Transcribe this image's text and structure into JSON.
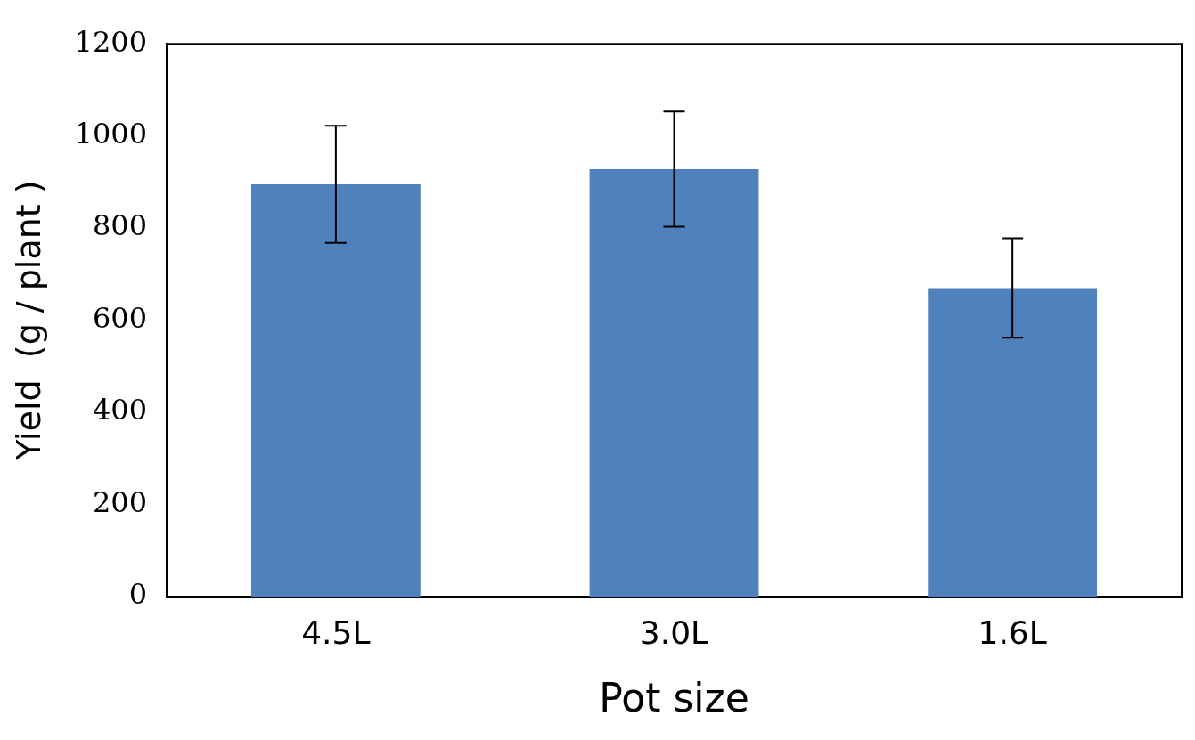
{
  "chart_data": {
    "type": "bar",
    "xlabel": "Pot size",
    "ylabel": "Yield  (g / plant )",
    "categories": [
      "4.5L",
      "3.0L",
      "1.6L"
    ],
    "values": [
      895,
      928,
      670
    ],
    "errors": [
      127,
      125,
      108
    ],
    "color": "#4f81bd",
    "ylim": [
      0,
      1200
    ],
    "yticks": [
      0,
      200,
      400,
      600,
      800,
      1000,
      1200
    ],
    "grid": false
  }
}
